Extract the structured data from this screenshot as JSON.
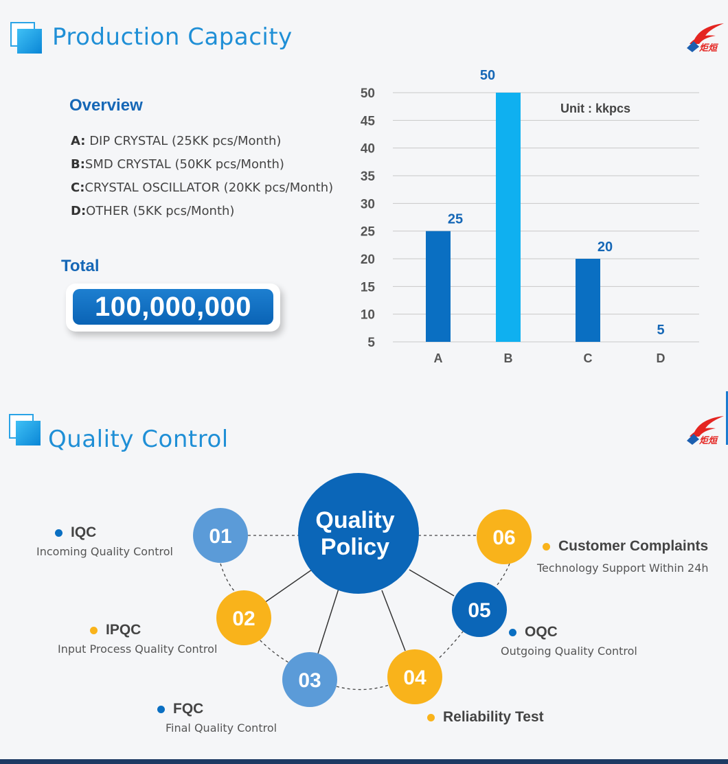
{
  "sections": {
    "production_title": "Production Capacity",
    "quality_title": "Quality Control"
  },
  "overview": {
    "heading": "Overview",
    "items": [
      {
        "letter": "A:",
        "text": " DIP CRYSTAL (25KK pcs/Month)"
      },
      {
        "letter": "B:",
        "text": "SMD CRYSTAL (50KK pcs/Month)"
      },
      {
        "letter": "C:",
        "text": "CRYSTAL OSCILLATOR (20KK pcs/Month)"
      },
      {
        "letter": "D:",
        "text": "OTHER  (5KK pcs/Month)"
      }
    ]
  },
  "total": {
    "label": "Total",
    "value": "100,000,000"
  },
  "colors": {
    "dark_blue": "#0a6fc2",
    "light_blue": "#0fb0f0",
    "title_blue": "#1f8fd6",
    "orange": "#f9b31b",
    "mid_blue": "#5b9bd8",
    "policy_blue": "#0b66b8"
  },
  "chart_data": {
    "type": "bar",
    "categories": [
      "A",
      "B",
      "C",
      "D"
    ],
    "values": [
      25,
      50,
      20,
      5
    ],
    "bar_colors": [
      "#0a6fc2",
      "#0fb0f0",
      "#0a6fc2",
      "#0fb0f0"
    ],
    "data_labels": [
      "25",
      "50",
      "20",
      "5"
    ],
    "yticks": [
      5,
      10,
      15,
      20,
      25,
      30,
      35,
      40,
      45,
      50
    ],
    "ylim": [
      5,
      50
    ],
    "unit_label": "Unit : kkpcs",
    "grid": true
  },
  "quality": {
    "policy_line1": "Quality",
    "policy_line2": "Policy",
    "nodes": [
      {
        "num": "01",
        "name": "IQC",
        "desc": "Incoming Quality Control",
        "color": "#5b9bd8",
        "dot": "#0a6fc2"
      },
      {
        "num": "02",
        "name": "IPQC",
        "desc": "Input Process Quality Control",
        "color": "#f9b31b",
        "dot": "#f9b31b"
      },
      {
        "num": "03",
        "name": "FQC",
        "desc": "Final Quality Control",
        "color": "#5b9bd8",
        "dot": "#0a6fc2"
      },
      {
        "num": "04",
        "name": "Reliability Test",
        "desc": "",
        "color": "#f9b31b",
        "dot": "#f9b31b"
      },
      {
        "num": "05",
        "name": "OQC",
        "desc": "Outgoing Quality Control",
        "color": "#0b66b8",
        "dot": "#0a6fc2"
      },
      {
        "num": "06",
        "name": "Customer Complaints",
        "desc": "Technology Support Within 24h",
        "color": "#f9b31b",
        "dot": "#f9b31b"
      }
    ]
  }
}
